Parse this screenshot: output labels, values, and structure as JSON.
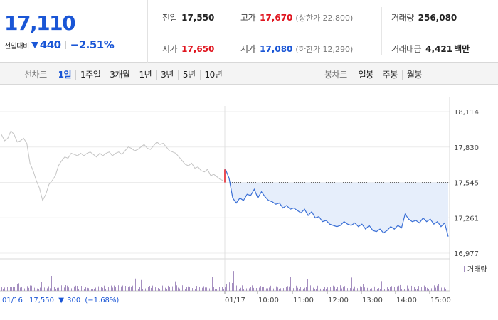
{
  "summary": {
    "current_price": "17,110",
    "change_label": "전일대비",
    "change_value": "440",
    "change_direction": "down",
    "change_rate": "−2.51%",
    "prev_close": {
      "label": "전일",
      "value": "17,550"
    },
    "high": {
      "label": "고가",
      "value": "17,670",
      "limit_label": "(상한가 22,800)"
    },
    "volume": {
      "label": "거래량",
      "value": "256,080"
    },
    "open": {
      "label": "시가",
      "value": "17,650"
    },
    "low": {
      "label": "저가",
      "value": "17,080",
      "limit_label": "(하한가 12,290)"
    },
    "amount": {
      "label": "거래대금",
      "value": "4,421",
      "unit": "백만"
    }
  },
  "line_chart_tabs": {
    "label": "선차트",
    "items": [
      {
        "label": "1일",
        "active": true
      },
      {
        "label": "1주일",
        "active": false
      },
      {
        "label": "3개월",
        "active": false
      },
      {
        "label": "1년",
        "active": false
      },
      {
        "label": "3년",
        "active": false
      },
      {
        "label": "5년",
        "active": false
      },
      {
        "label": "10년",
        "active": false
      }
    ]
  },
  "candle_chart_tabs": {
    "label": "봉차트",
    "items": [
      {
        "label": "일봉"
      },
      {
        "label": "주봉"
      },
      {
        "label": "월봉"
      }
    ]
  },
  "colors": {
    "blue": "#1a56d6",
    "red": "#e0141e",
    "prev_day_line": "#c4c4c4",
    "today_line": "#3a6fd6",
    "fill": "#e6eefb",
    "volume": "#a58fc0"
  },
  "chart_data": {
    "type": "line",
    "y_ticks": [
      "18,114",
      "17,830",
      "17,545",
      "17,261",
      "16,977"
    ],
    "ylim": [
      16977,
      18114
    ],
    "reference_price": 17545,
    "x_tick_labels": [
      "01/17",
      "10:00",
      "11:00",
      "12:00",
      "13:00",
      "14:00",
      "15:00"
    ],
    "prev_day_info": {
      "date": "01/16",
      "close": "17,550",
      "change": "300",
      "change_rate": "(−1.68%)"
    },
    "volume_legend": "거래량",
    "series": [
      {
        "date": "01/16",
        "values": [
          17930,
          17880,
          17900,
          17960,
          17930,
          17870,
          17880,
          17900,
          17860,
          17700,
          17640,
          17560,
          17500,
          17400,
          17450,
          17530,
          17560,
          17600,
          17680,
          17720,
          17750,
          17740,
          17780,
          17770,
          17760,
          17780,
          17760,
          17780,
          17790,
          17770,
          17750,
          17780,
          17760,
          17780,
          17790,
          17760,
          17780,
          17790,
          17770,
          17800,
          17830,
          17820,
          17800,
          17810,
          17830,
          17850,
          17820,
          17810,
          17840,
          17870,
          17850,
          17860,
          17830,
          17800,
          17790,
          17780,
          17750,
          17720,
          17690,
          17680,
          17700,
          17660,
          17670,
          17640,
          17630,
          17650,
          17600,
          17610,
          17590,
          17570,
          17560
        ]
      },
      {
        "date": "01/17",
        "values": [
          17650,
          17580,
          17420,
          17380,
          17420,
          17400,
          17450,
          17440,
          17490,
          17420,
          17470,
          17430,
          17400,
          17390,
          17370,
          17380,
          17340,
          17360,
          17330,
          17340,
          17320,
          17300,
          17330,
          17280,
          17310,
          17260,
          17270,
          17230,
          17240,
          17210,
          17200,
          17190,
          17200,
          17230,
          17210,
          17200,
          17220,
          17190,
          17210,
          17170,
          17200,
          17160,
          17150,
          17170,
          17140,
          17160,
          17190,
          17170,
          17200,
          17180,
          17290,
          17250,
          17230,
          17240,
          17220,
          17260,
          17230,
          17250,
          17210,
          17230,
          17190,
          17220,
          17110
        ]
      }
    ]
  }
}
